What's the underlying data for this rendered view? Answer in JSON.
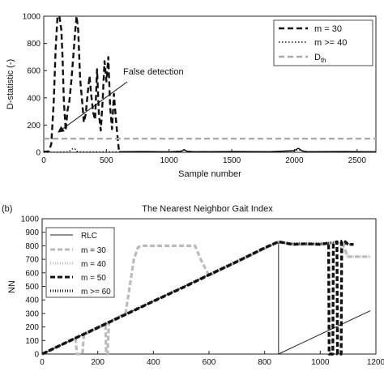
{
  "chart_data": [
    {
      "type": "line",
      "panel_label": "",
      "title": "",
      "xlabel": "Sample number",
      "ylabel": "D-statistic (-)",
      "xlim": [
        0,
        2650
      ],
      "ylim": [
        0,
        1000
      ],
      "xticks": [
        0,
        500,
        1000,
        1500,
        2000,
        2500
      ],
      "yticks": [
        0,
        200,
        400,
        600,
        800,
        1000
      ],
      "grid": false,
      "legend_position": "top-right",
      "legend": {
        "m30": "m = 30",
        "m40": "m >= 40",
        "dth_main": "D",
        "dth_sub": "th"
      },
      "annotation": {
        "text": "False detection",
        "arrow_from": [
          470,
          380
        ],
        "arrow_to": [
          100,
          130
        ]
      },
      "series": [
        {
          "name": "m = 30",
          "color": "#111111",
          "dash": "dashed",
          "x": [
            0,
            20,
            40,
            60,
            80,
            95,
            110,
            125,
            140,
            150,
            160,
            175,
            190,
            205,
            220,
            235,
            250,
            262,
            275,
            290,
            305,
            320,
            335,
            350,
            365,
            380,
            395,
            410,
            425,
            440,
            455,
            470,
            485,
            500,
            515,
            530,
            545,
            560,
            575,
            590,
            600
          ],
          "y": [
            5,
            5,
            8,
            60,
            380,
            760,
            1000,
            1000,
            900,
            700,
            380,
            160,
            310,
            380,
            520,
            700,
            880,
            1000,
            900,
            540,
            390,
            220,
            280,
            430,
            560,
            410,
            290,
            240,
            610,
            280,
            160,
            380,
            670,
            520,
            700,
            330,
            170,
            430,
            250,
            100,
            15
          ]
        },
        {
          "name": "m >= 40",
          "color": "#111111",
          "dash": "dotted",
          "x": [
            0,
            100,
            200,
            220,
            240,
            250,
            260,
            300,
            400,
            600,
            800,
            1000,
            1100,
            1120,
            1140,
            1200,
            1500,
            1800,
            2000,
            2030,
            2060,
            2100,
            2400,
            2650
          ],
          "y": [
            0,
            2,
            3,
            20,
            30,
            25,
            8,
            3,
            3,
            3,
            3,
            3,
            10,
            18,
            10,
            3,
            3,
            3,
            10,
            22,
            10,
            3,
            3,
            3
          ]
        },
        {
          "name": "Dth",
          "color": "#aaaaaa",
          "dash": "dashed",
          "x": [
            0,
            2650
          ],
          "y": [
            100,
            100
          ]
        },
        {
          "name": "",
          "color": "#111111",
          "dash": "solid",
          "x": [
            600,
            800,
            1000,
            1100,
            1120,
            1140,
            1200,
            1500,
            1800,
            2000,
            2030,
            2060,
            2100,
            2400,
            2650
          ],
          "y": [
            5,
            6,
            4,
            8,
            20,
            8,
            5,
            6,
            5,
            12,
            30,
            12,
            5,
            6,
            4
          ]
        }
      ]
    },
    {
      "type": "line",
      "panel_label": "(b)",
      "title": "The Nearest Neighbor Gait Index",
      "xlabel": "",
      "ylabel": "NN",
      "xlim": [
        0,
        1200
      ],
      "ylim": [
        0,
        1000
      ],
      "xticks": [
        0,
        200,
        400,
        600,
        800,
        1000,
        1200
      ],
      "yticks": [
        0,
        100,
        200,
        300,
        400,
        500,
        600,
        700,
        800,
        900,
        1000
      ],
      "grid": false,
      "legend_position": "top-left",
      "legend": {
        "rlc": "RLC",
        "m30": "m = 30",
        "m40": "m = 40",
        "m50": "m = 50",
        "m60": "m >= 60"
      },
      "series": [
        {
          "name": "RLC",
          "color": "#222222",
          "dash": "solid",
          "x": [
            0,
            850,
            850,
            1180
          ],
          "y": [
            0,
            830,
            0,
            320
          ]
        },
        {
          "name": "m = 30",
          "color": "#bbbbbb",
          "dash": "dashed",
          "x": [
            0,
            120,
            125,
            145,
            150,
            228,
            230,
            235,
            240,
            250,
            300,
            330,
            345,
            360,
            400,
            450,
            500,
            550,
            570,
            600,
            650,
            700,
            750,
            800,
            850,
            900,
            1000,
            1060,
            1080,
            1100,
            1140,
            1180
          ],
          "y": [
            0,
            115,
            0,
            0,
            140,
            220,
            0,
            0,
            230,
            245,
            300,
            700,
            790,
            800,
            800,
            800,
            800,
            800,
            700,
            580,
            630,
            680,
            730,
            780,
            830,
            810,
            810,
            830,
            810,
            720,
            720,
            720
          ]
        },
        {
          "name": "m = 40",
          "color": "#bbbbbb",
          "dash": "dotted",
          "x": [
            0,
            100,
            200,
            300,
            400,
            500,
            600,
            700,
            800,
            850,
            900,
            1000,
            1060,
            1100,
            1180
          ],
          "y": [
            0,
            100,
            195,
            290,
            390,
            485,
            580,
            680,
            780,
            825,
            815,
            820,
            820,
            720,
            720
          ]
        },
        {
          "name": "m = 50",
          "color": "#111111",
          "dash": "dashed",
          "x": [
            0,
            100,
            200,
            300,
            400,
            500,
            600,
            700,
            800,
            850,
            900,
            950,
            1000,
            1030,
            1032,
            1045,
            1047,
            1060,
            1062,
            1075,
            1077,
            1090,
            1100,
            1120
          ],
          "y": [
            0,
            98,
            195,
            292,
            390,
            485,
            585,
            682,
            785,
            830,
            810,
            815,
            810,
            820,
            0,
            0,
            820,
            830,
            0,
            0,
            835,
            830,
            810,
            810
          ]
        },
        {
          "name": "m >= 60",
          "color": "#111111",
          "dash": "dotted",
          "x": [
            0,
            100,
            200,
            300,
            400,
            500,
            600,
            700,
            800,
            850,
            900,
            1000,
            1060,
            1100,
            1120
          ],
          "y": [
            0,
            100,
            198,
            296,
            392,
            490,
            588,
            686,
            784,
            828,
            815,
            815,
            825,
            810,
            810
          ]
        }
      ]
    }
  ]
}
